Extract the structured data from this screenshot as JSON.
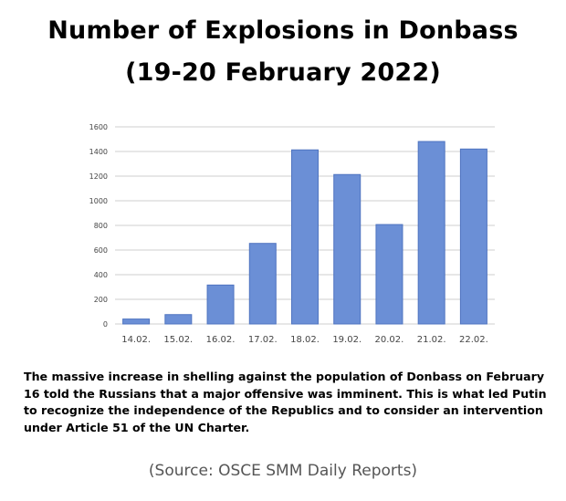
{
  "header": {
    "title_line1": "Number of Explosions in Donbass",
    "title_line2": "(19-20 February 2022)"
  },
  "chart_data": {
    "type": "bar",
    "title": "Number of Explosions in Donbass (19-20 February 2022)",
    "xlabel": "",
    "ylabel": "",
    "categories": [
      "14.02.",
      "15.02.",
      "16.02.",
      "17.02.",
      "18.02.",
      "19.02.",
      "20.02.",
      "21.02.",
      "22.02."
    ],
    "values": [
      40,
      76,
      316,
      654,
      1413,
      1213,
      807,
      1481,
      1420
    ],
    "ylim": [
      0,
      1600
    ],
    "yticks": [
      0,
      200,
      400,
      600,
      800,
      1000,
      1200,
      1400,
      1600
    ],
    "grid": true,
    "bar_color": "#6b8fd6",
    "bar_edge_color": "#4f74c0"
  },
  "caption": {
    "text": "The massive increase in shelling against the population of Donbass on February 16 told the Russians that a major offensive was imminent. This is what led Putin to recognize the independence of the Republics and to consider an intervention under Article 51 of the UN Charter."
  },
  "source": {
    "text": "(Source: OSCE SMM Daily Reports)"
  }
}
